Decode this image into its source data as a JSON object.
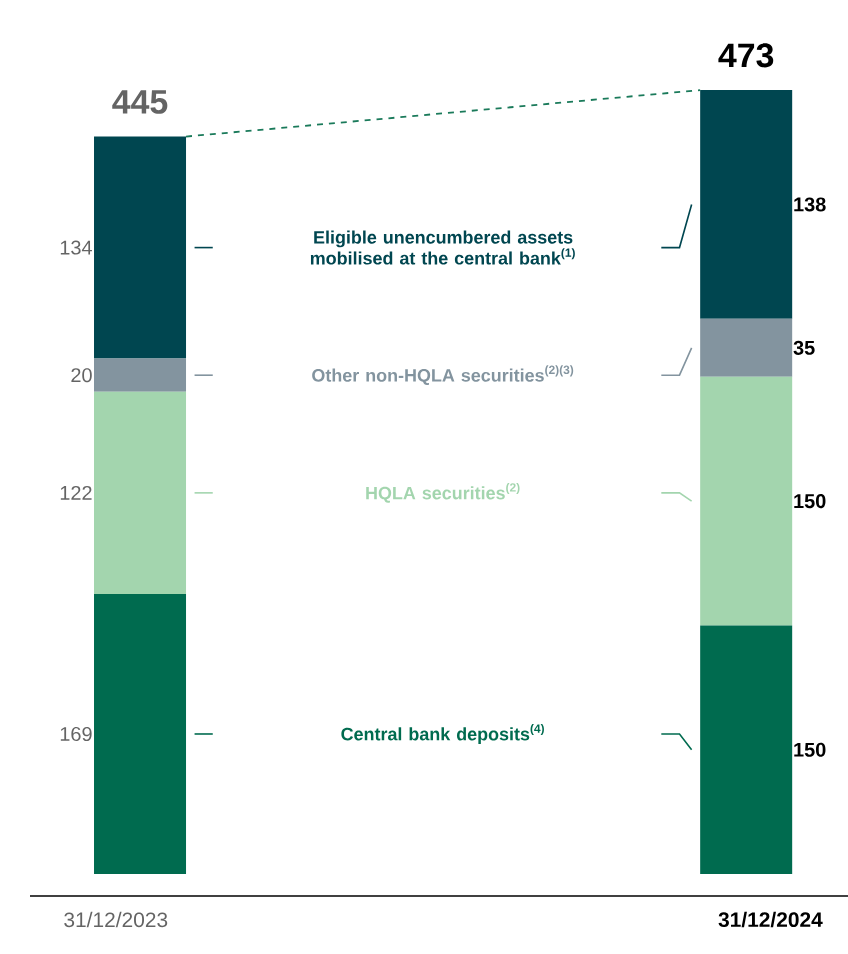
{
  "chart_data": {
    "type": "bar",
    "stacked": true,
    "data_labels": true,
    "categories": [
      "31/12/2023",
      "31/12/2024"
    ],
    "series": [
      {
        "name": "Central bank deposits$^{(4)}$",
        "color": "#006b4f",
        "values": [
          169,
          150
        ]
      },
      {
        "name": "HQLA securities$^{(2)}$",
        "color": "#a3d5ae",
        "values": [
          122,
          150
        ]
      },
      {
        "name": "Other non-HQLA securities$^{(2)(3)}$",
        "color": "#83949f",
        "values": [
          20,
          35
        ]
      },
      {
        "name": "Eligible unencumbered assets mobilised at the central bank$^{(1)}$",
        "color": "#004650",
        "values": [
          134,
          138
        ]
      }
    ],
    "totals": [
      "445",
      "473"
    ],
    "legend": "center"
  }
}
